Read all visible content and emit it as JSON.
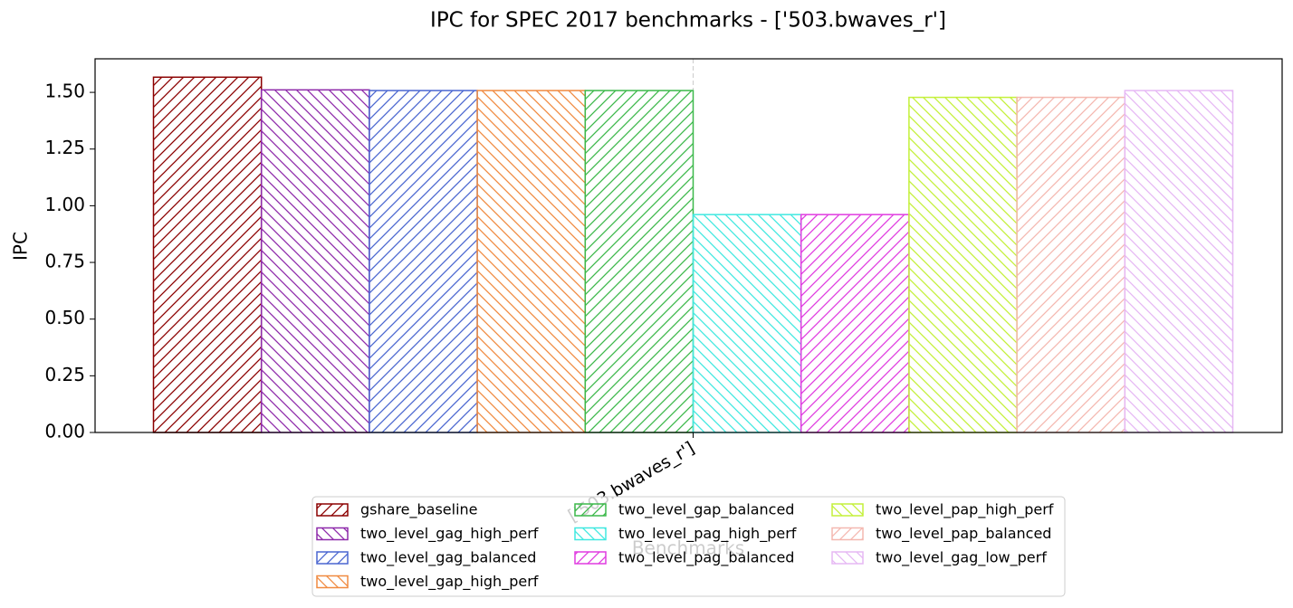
{
  "chart_data": {
    "type": "bar",
    "title": "IPC for SPEC 2017 benchmarks - ['503.bwaves_r']",
    "x_label": "Benchmarks",
    "y_label": "IPC",
    "categories": [
      "['503.bwaves_r']"
    ],
    "series": [
      {
        "name": "gshare_baseline",
        "color": "#8b0000",
        "hatch": "/",
        "values": [
          1.567
        ]
      },
      {
        "name": "two_level_gag_high_perf",
        "color": "#8e2aaa",
        "hatch": "\\",
        "values": [
          1.511
        ]
      },
      {
        "name": "two_level_gag_balanced",
        "color": "#4a66d0",
        "hatch": "/",
        "values": [
          1.508
        ]
      },
      {
        "name": "two_level_gap_high_perf",
        "color": "#f08a40",
        "hatch": "\\",
        "values": [
          1.508
        ]
      },
      {
        "name": "two_level_gap_balanced",
        "color": "#3cb84a",
        "hatch": "/",
        "values": [
          1.508
        ]
      },
      {
        "name": "two_level_pag_high_perf",
        "color": "#40e8e0",
        "hatch": "\\",
        "values": [
          0.961
        ]
      },
      {
        "name": "two_level_pag_balanced",
        "color": "#e03ce0",
        "hatch": "/",
        "values": [
          0.961
        ]
      },
      {
        "name": "two_level_pap_high_perf",
        "color": "#c4f03a",
        "hatch": "\\",
        "values": [
          1.478
        ]
      },
      {
        "name": "two_level_pap_balanced",
        "color": "#f4b8b0",
        "hatch": "/",
        "values": [
          1.478
        ]
      },
      {
        "name": "two_level_gag_low_perf",
        "color": "#e6b8f4",
        "hatch": "\\",
        "values": [
          1.508
        ]
      }
    ],
    "ylim": [
      0,
      1.648
    ],
    "yticks": [
      {
        "value": 0,
        "label": "0.00"
      },
      {
        "value": 0.25,
        "label": "0.25"
      },
      {
        "value": 0.5,
        "label": "0.50"
      },
      {
        "value": 0.75,
        "label": "0.75"
      },
      {
        "value": 1,
        "label": "1.00"
      },
      {
        "value": 1.25,
        "label": "1.25"
      },
      {
        "value": 1.5,
        "label": "1.50"
      }
    ],
    "grid": "x",
    "legend": "lower center"
  }
}
